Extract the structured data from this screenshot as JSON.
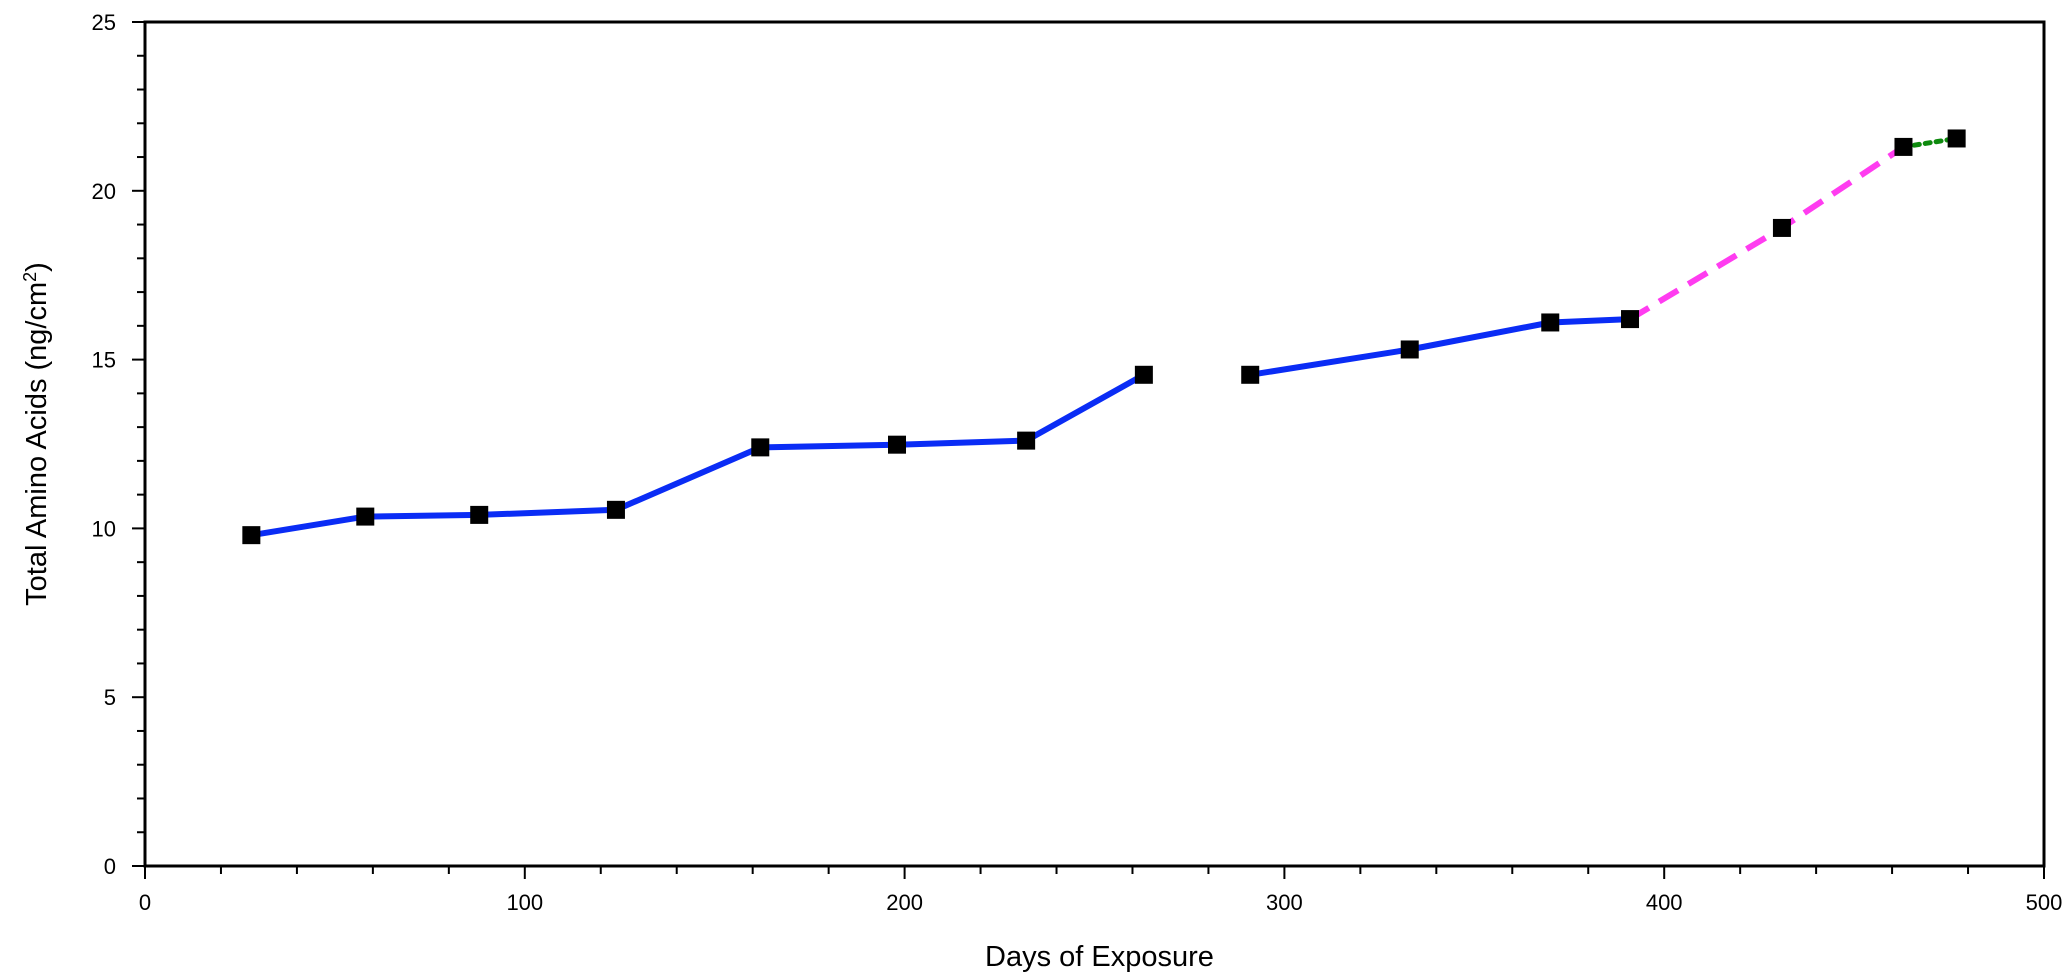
{
  "chart_data": {
    "type": "line",
    "title": "",
    "xlabel": "Days of Exposure",
    "ylabel_main": "Total Amino Acids (ng/cm",
    "ylabel_sup": "2",
    "ylabel_end": ")",
    "xlim": [
      0,
      500
    ],
    "ylim": [
      0,
      25
    ],
    "x_ticks": [
      0,
      100,
      200,
      300,
      400,
      500
    ],
    "x_tick_labels": [
      "0",
      "100",
      "200",
      "300",
      "400",
      "500"
    ],
    "x_minor_step": 20,
    "y_ticks": [
      0,
      5,
      10,
      15,
      20,
      25
    ],
    "y_tick_labels": [
      "0",
      "5",
      "10",
      "15",
      "20",
      "25"
    ],
    "y_minor_step": 1,
    "grid": false,
    "legend": "none",
    "points": [
      {
        "x": 28,
        "y": 9.8
      },
      {
        "x": 58,
        "y": 10.35
      },
      {
        "x": 88,
        "y": 10.4
      },
      {
        "x": 124,
        "y": 10.55
      },
      {
        "x": 162,
        "y": 12.4
      },
      {
        "x": 198,
        "y": 12.48
      },
      {
        "x": 232,
        "y": 12.6
      },
      {
        "x": 263,
        "y": 14.55
      },
      {
        "x": 291,
        "y": 14.55
      },
      {
        "x": 333,
        "y": 15.3
      },
      {
        "x": 370,
        "y": 16.1
      },
      {
        "x": 391,
        "y": 16.2
      },
      {
        "x": 431,
        "y": 18.9
      },
      {
        "x": 463,
        "y": 21.3
      },
      {
        "x": 477,
        "y": 21.55
      }
    ],
    "segments": [
      {
        "from": 0,
        "to": 7,
        "color": "#0a2cf5",
        "style": "solid"
      },
      {
        "from": 8,
        "to": 11,
        "color": "#0a2cf5",
        "style": "solid"
      },
      {
        "from": 11,
        "to": 13,
        "color": "#ff3cf0",
        "style": "dashed"
      },
      {
        "from": 13,
        "to": 14,
        "color": "#0d8a0d",
        "style": "dotted"
      }
    ],
    "marker": {
      "shape": "square",
      "color": "#000000"
    }
  }
}
